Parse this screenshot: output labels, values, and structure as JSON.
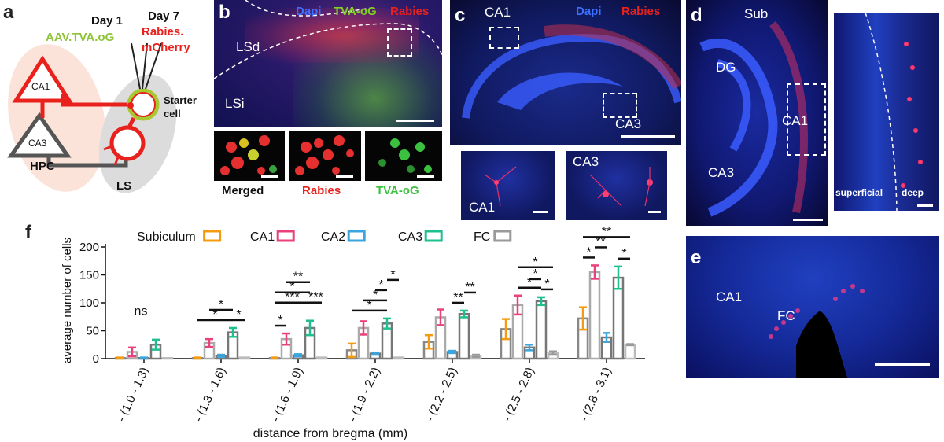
{
  "panels": {
    "a": {
      "label": "a",
      "day1": "Day 1",
      "day1_virus": "AAV.TVA.oG",
      "day7": "Day 7",
      "day7_virus_1": "Rabies.",
      "day7_virus_2": "mCherry",
      "ca1": "CA1",
      "ca3": "CA3",
      "hpc": "HPC",
      "ls": "LS",
      "starter_1": "Starter",
      "starter_2": "cell"
    },
    "b": {
      "label": "b",
      "legend_dapi": "Dapi",
      "legend_tva": "TVA-oG",
      "legend_rabies": "Rabies",
      "lsd": "LSd",
      "lsi": "LSi",
      "merged": "Merged",
      "rabies": "Rabies",
      "tva": "TVA-oG"
    },
    "c": {
      "label": "c",
      "ca1": "CA1",
      "legend_dapi": "Dapi",
      "legend_rabies": "Rabies",
      "ca3": "CA3",
      "inset1": "CA1",
      "inset2": "CA3"
    },
    "d": {
      "label": "d",
      "sub": "Sub",
      "dg": "DG",
      "ca1": "CA1",
      "ca3": "CA3",
      "superficial": "superficial",
      "deep": "deep"
    },
    "e": {
      "label": "e",
      "ca1": "CA1",
      "fc": "FC"
    },
    "f": {
      "label": "f"
    }
  },
  "colors": {
    "subiculum": "#f39c12",
    "ca1": "#e8417d",
    "ca2": "#3aa6dd",
    "ca3": "#1fbf8f",
    "fc": "#9a9a9a",
    "dapi": "#3b6fff",
    "tva": "#7ed321",
    "rabies": "#e8211d"
  },
  "chart_data": {
    "type": "bar",
    "categories": [
      "- (1.0 - 1.3)",
      "- (1.3 - 1.6)",
      "- (1.6 - 1.9)",
      "- (1.9 - 2.2)",
      "- (2.2 - 2.5)",
      "- (2.5 - 2.8)",
      "- (2.8 - 3.1)"
    ],
    "series": [
      {
        "name": "Subiculum",
        "values": [
          1,
          1,
          1,
          15,
          30,
          53,
          72
        ],
        "errors": [
          1,
          1,
          1,
          12,
          12,
          18,
          20
        ]
      },
      {
        "name": "CA1",
        "values": [
          12,
          28,
          35,
          55,
          74,
          96,
          155
        ],
        "errors": [
          8,
          7,
          10,
          12,
          14,
          17,
          12
        ]
      },
      {
        "name": "CA2",
        "values": [
          1,
          5,
          6,
          9,
          12,
          20,
          38
        ],
        "errors": [
          1,
          2,
          2,
          2,
          2,
          5,
          8
        ]
      },
      {
        "name": "CA3",
        "values": [
          25,
          47,
          55,
          63,
          80,
          103,
          145
        ],
        "errors": [
          9,
          8,
          13,
          9,
          6,
          7,
          20
        ]
      },
      {
        "name": "FC",
        "values": [
          1,
          2,
          2,
          2,
          5,
          10,
          25
        ],
        "errors": [
          0,
          0,
          0,
          0,
          2,
          3,
          1
        ]
      }
    ],
    "ylabel": "average number of cells",
    "xlabel": "distance from bregma (mm)",
    "ylim": [
      0,
      200
    ],
    "yticks": [
      0,
      50,
      100,
      150,
      200
    ],
    "legend_position": "top",
    "significance": [
      {
        "group": 0,
        "text": "ns"
      },
      {
        "group": 1,
        "from": 0,
        "to": 3,
        "level": 0,
        "text": "*"
      },
      {
        "group": 1,
        "from": 1,
        "to": 3,
        "level": 1,
        "text": "*"
      },
      {
        "group": 1,
        "from": 3,
        "to": 4,
        "level": 0,
        "text": "*"
      },
      {
        "group": 2,
        "from": 0,
        "to": 1,
        "level": 0,
        "text": "*"
      },
      {
        "group": 2,
        "from": 0,
        "to": 3,
        "level": 1,
        "text": "***"
      },
      {
        "group": 2,
        "from": 0,
        "to": 3,
        "level": 2,
        "text": "*"
      },
      {
        "group": 2,
        "from": 1,
        "to": 3,
        "level": 3,
        "text": "**"
      },
      {
        "group": 2,
        "from": 3,
        "to": 4,
        "level": 1,
        "text": "***"
      },
      {
        "group": 3,
        "from": 0,
        "to": 3,
        "level": 0,
        "text": "*"
      },
      {
        "group": 3,
        "from": 1,
        "to": 3,
        "level": 1,
        "text": "*"
      },
      {
        "group": 3,
        "from": 2,
        "to": 3,
        "level": 2,
        "text": "*"
      },
      {
        "group": 3,
        "from": 3,
        "to": 4,
        "level": 3,
        "text": "*"
      },
      {
        "group": 4,
        "from": 2,
        "to": 3,
        "level": 0,
        "text": "**"
      },
      {
        "group": 4,
        "from": 3,
        "to": 4,
        "level": 1,
        "text": "**"
      },
      {
        "group": 5,
        "from": 1,
        "to": 3,
        "level": 0,
        "text": "*"
      },
      {
        "group": 5,
        "from": 2,
        "to": 3,
        "level": 1,
        "text": "*"
      },
      {
        "group": 5,
        "from": 3,
        "to": 4,
        "level": 0,
        "text": "*"
      },
      {
        "group": 5,
        "from": 1,
        "to": 4,
        "level": 2,
        "text": "*"
      },
      {
        "group": 6,
        "from": 0,
        "to": 1,
        "level": 0,
        "text": "*"
      },
      {
        "group": 6,
        "from": 1,
        "to": 2,
        "level": 1,
        "text": "**"
      },
      {
        "group": 6,
        "from": 3,
        "to": 4,
        "level": 0,
        "text": "*"
      },
      {
        "group": 6,
        "from": 0,
        "to": 4,
        "level": 2,
        "text": "**"
      }
    ]
  }
}
